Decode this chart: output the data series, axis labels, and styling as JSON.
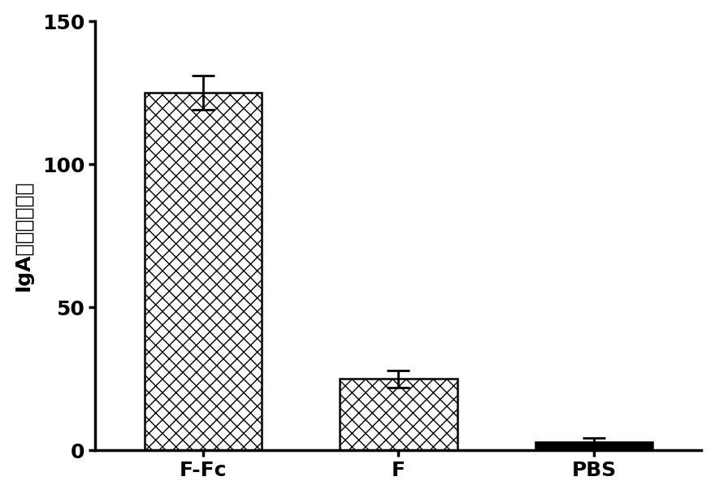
{
  "categories": [
    "F-Fc",
    "F",
    "PBS"
  ],
  "values": [
    125,
    25,
    3
  ],
  "errors": [
    6,
    3,
    1.2
  ],
  "ylim": [
    0,
    150
  ],
  "yticks": [
    0,
    50,
    100,
    150
  ],
  "ylabel": "IgA滴度（唇液）",
  "bar_width": 0.6,
  "background_color": "#ffffff",
  "label_fontsize": 18,
  "tick_fontsize": 18,
  "figure_width": 8.8,
  "figure_height": 6.08,
  "dpi": 100
}
